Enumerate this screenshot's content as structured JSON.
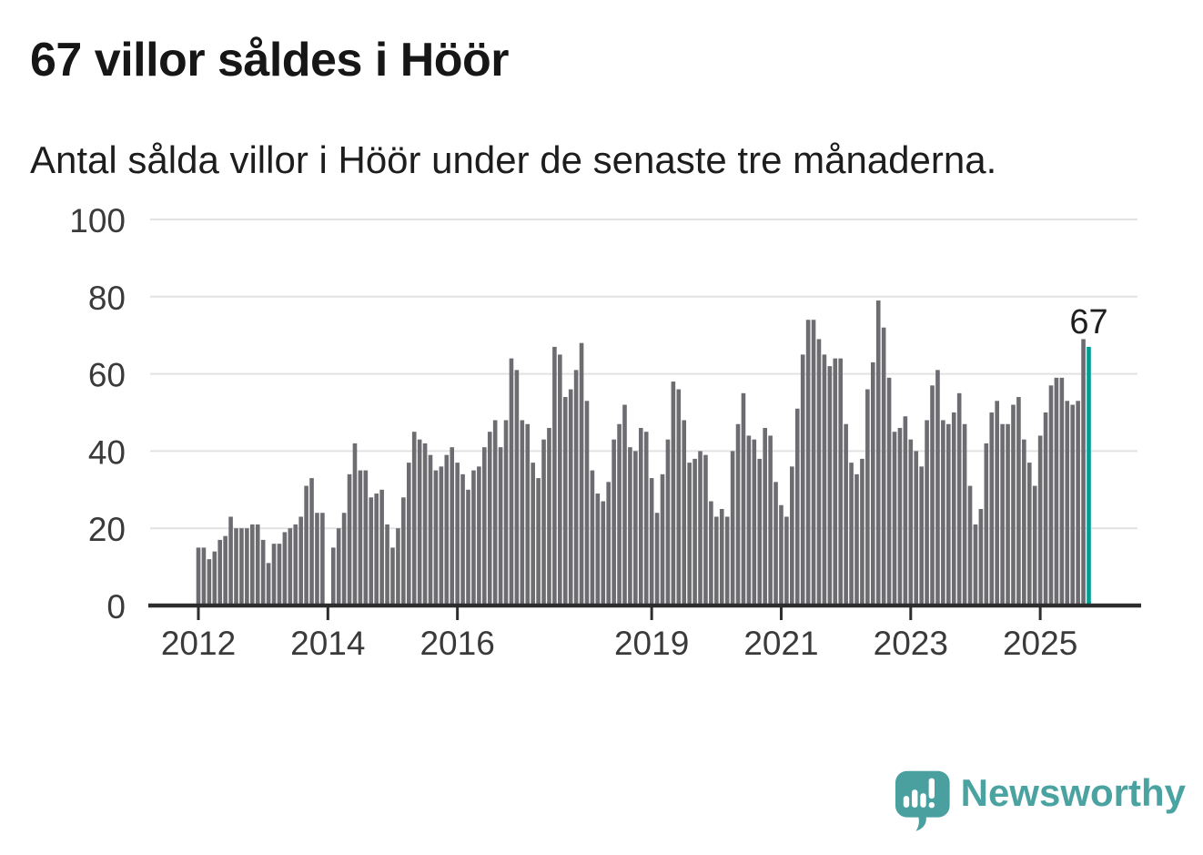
{
  "header": {
    "title": "67 villor såldes i Höör",
    "subtitle": "Antal sålda villor i Höör under de senaste tre månaderna."
  },
  "chart_data": {
    "type": "bar",
    "title": "67 villor såldes i Höör",
    "subtitle": "Antal sålda villor i Höör under de senaste tre månaderna.",
    "x_start": "2012-01",
    "x_end": "2025-10",
    "x_unit": "month (rolling 3-month total)",
    "values": [
      15,
      15,
      12,
      14,
      17,
      18,
      23,
      20,
      20,
      20,
      21,
      21,
      17,
      11,
      16,
      16,
      19,
      20,
      21,
      23,
      31,
      33,
      24,
      24,
      0,
      15,
      20,
      24,
      34,
      42,
      35,
      35,
      28,
      29,
      30,
      21,
      15,
      20,
      28,
      37,
      45,
      43,
      42,
      39,
      35,
      36,
      39,
      41,
      37,
      34,
      30,
      35,
      36,
      41,
      45,
      48,
      41,
      48,
      64,
      61,
      48,
      47,
      37,
      33,
      43,
      46,
      67,
      65,
      54,
      56,
      61,
      68,
      53,
      35,
      29,
      27,
      32,
      43,
      47,
      52,
      41,
      40,
      46,
      45,
      33,
      24,
      34,
      43,
      58,
      56,
      48,
      37,
      38,
      40,
      39,
      27,
      23,
      25,
      23,
      40,
      47,
      55,
      44,
      43,
      38,
      46,
      44,
      32,
      26,
      23,
      36,
      51,
      65,
      74,
      74,
      69,
      65,
      62,
      64,
      64,
      47,
      37,
      34,
      38,
      56,
      63,
      79,
      72,
      59,
      45,
      46,
      49,
      43,
      40,
      36,
      48,
      57,
      61,
      48,
      47,
      50,
      55,
      47,
      31,
      21,
      25,
      42,
      50,
      53,
      47,
      47,
      52,
      54,
      43,
      37,
      31,
      44,
      50,
      57,
      59,
      59,
      53,
      52,
      53,
      69,
      67
    ],
    "highlight_index": 165,
    "highlight_label": "67",
    "x_tick_years": [
      2012,
      2014,
      2016,
      2019,
      2021,
      2023,
      2025
    ],
    "y_ticks": [
      0,
      20,
      40,
      60,
      80,
      100
    ],
    "ylim": [
      0,
      100
    ],
    "grid": "horizontal",
    "legend": "none",
    "bar_color": "#6c6c71",
    "highlight_color": "#009e96",
    "axis_color": "#2d2d2d",
    "gridline_color": "#e2e2e2",
    "tick_label_color": "#3a3a3a",
    "annotation_color": "#1e1e1e"
  },
  "footer": {
    "brand": "Newsworthy",
    "brand_color": "#4ba3a1",
    "logo_icon": "speech-bubble-with-bar-chart-and-exclamation"
  }
}
